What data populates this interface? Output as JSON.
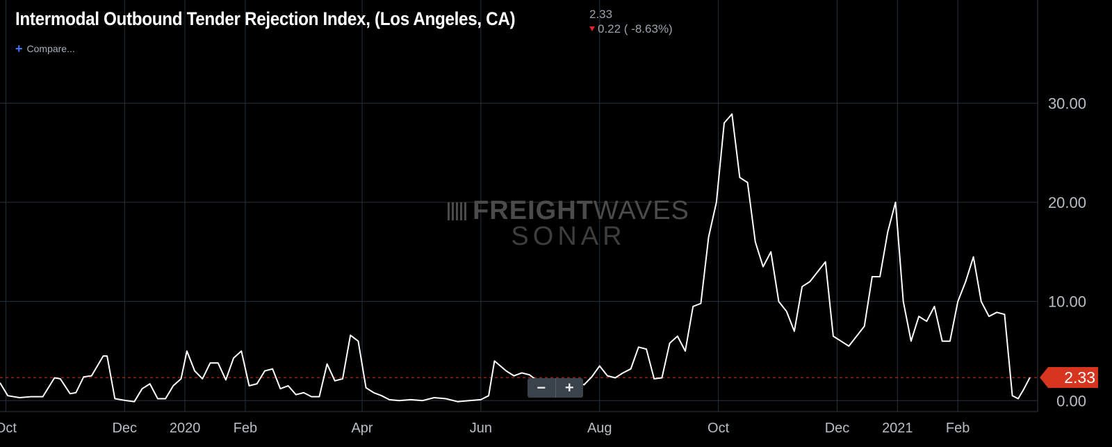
{
  "header": {
    "title": "Intermodal Outbound Tender Rejection Index, (Los Angeles, CA)",
    "last_value": "2.33",
    "change": "0.22 ( -8.63%)"
  },
  "compare_label": "Compare...",
  "zoom": {
    "minus": "−",
    "plus": "+"
  },
  "watermark": {
    "brand_bold": "FREIGHT",
    "brand_light": "WAVES",
    "product": "SONAR"
  },
  "last_value_tag": "2.33",
  "colors": {
    "background": "#000000",
    "line": "#ffffff",
    "grid": "#27323d",
    "last_tag": "#d6361f",
    "down": "#e8202a"
  },
  "chart_data": {
    "type": "line",
    "title": "Intermodal Outbound Tender Rejection Index, (Los Angeles, CA)",
    "x_tick_labels": [
      "Oct",
      "Dec",
      "2020",
      "Feb",
      "Apr",
      "Jun",
      "Aug",
      "Oct",
      "Dec",
      "2021",
      "Feb"
    ],
    "x_tick_dates": [
      "2019-10-01",
      "2019-12-01",
      "2020-01-01",
      "2020-02-01",
      "2020-04-01",
      "2020-06-01",
      "2020-08-01",
      "2020-10-01",
      "2020-12-01",
      "2021-01-01",
      "2021-02-01"
    ],
    "y_tick_labels": [
      "0.00",
      "10.00",
      "20.00",
      "30.00"
    ],
    "y_ticks": [
      0,
      10,
      20,
      30
    ],
    "xlim": [
      "2019-09-28",
      "2021-03-14"
    ],
    "ylim": [
      -1.1,
      40.4
    ],
    "last_value": 2.33,
    "grid": true,
    "series": [
      {
        "x": [
          "2019-09-28",
          "2019-10-02",
          "2019-10-08",
          "2019-10-14",
          "2019-10-20",
          "2019-10-26",
          "2019-10-29",
          "2019-11-03",
          "2019-11-06",
          "2019-11-10",
          "2019-11-14",
          "2019-11-20",
          "2019-11-22",
          "2019-11-26",
          "2019-12-02",
          "2019-12-06",
          "2019-12-10",
          "2019-12-14",
          "2019-12-18",
          "2019-12-22",
          "2019-12-26",
          "2019-12-30",
          "2020-01-02",
          "2020-01-06",
          "2020-01-10",
          "2020-01-14",
          "2020-01-18",
          "2020-01-22",
          "2020-01-26",
          "2020-01-30",
          "2020-02-03",
          "2020-02-07",
          "2020-02-11",
          "2020-02-15",
          "2020-02-19",
          "2020-02-23",
          "2020-02-27",
          "2020-03-02",
          "2020-03-06",
          "2020-03-10",
          "2020-03-14",
          "2020-03-18",
          "2020-03-22",
          "2020-03-26",
          "2020-03-30",
          "2020-04-03",
          "2020-04-07",
          "2020-04-11",
          "2020-04-15",
          "2020-04-20",
          "2020-04-26",
          "2020-05-02",
          "2020-05-08",
          "2020-05-14",
          "2020-05-20",
          "2020-05-26",
          "2020-06-01",
          "2020-06-05",
          "2020-06-08",
          "2020-06-11",
          "2020-06-14",
          "2020-06-18",
          "2020-06-22",
          "2020-06-26",
          "2020-06-30",
          "2020-07-04",
          "2020-07-08",
          "2020-07-12",
          "2020-07-16",
          "2020-07-20",
          "2020-07-24",
          "2020-07-28",
          "2020-08-01",
          "2020-08-05",
          "2020-08-09",
          "2020-08-13",
          "2020-08-17",
          "2020-08-21",
          "2020-08-25",
          "2020-08-29",
          "2020-09-02",
          "2020-09-06",
          "2020-09-10",
          "2020-09-14",
          "2020-09-18",
          "2020-09-22",
          "2020-09-26",
          "2020-09-30",
          "2020-10-04",
          "2020-10-08",
          "2020-10-12",
          "2020-10-16",
          "2020-10-20",
          "2020-10-24",
          "2020-10-28",
          "2020-11-01",
          "2020-11-05",
          "2020-11-09",
          "2020-11-13",
          "2020-11-17",
          "2020-11-21",
          "2020-11-25",
          "2020-11-29",
          "2020-12-03",
          "2020-12-07",
          "2020-12-11",
          "2020-12-15",
          "2020-12-19",
          "2020-12-23",
          "2020-12-27",
          "2020-12-31",
          "2021-01-04",
          "2021-01-08",
          "2021-01-12",
          "2021-01-16",
          "2021-01-20",
          "2021-01-24",
          "2021-01-28",
          "2021-02-01",
          "2021-02-05",
          "2021-02-09",
          "2021-02-13",
          "2021-02-17",
          "2021-02-21",
          "2021-02-25",
          "2021-03-01",
          "2021-03-04",
          "2021-03-07",
          "2021-03-10"
        ],
        "y": [
          1.8,
          0.5,
          0.3,
          0.4,
          0.4,
          2.3,
          2.2,
          0.7,
          0.8,
          2.4,
          2.5,
          4.5,
          4.5,
          0.2,
          0.0,
          -0.1,
          1.2,
          1.7,
          0.2,
          0.2,
          1.5,
          2.2,
          5.0,
          3.0,
          2.2,
          3.8,
          3.8,
          2.1,
          4.3,
          5.0,
          1.5,
          1.7,
          3.0,
          3.2,
          1.2,
          1.5,
          0.6,
          0.8,
          0.4,
          0.4,
          3.7,
          2.0,
          2.2,
          6.6,
          6.0,
          1.3,
          0.8,
          0.5,
          0.1,
          0.0,
          0.1,
          0.0,
          0.3,
          0.2,
          -0.1,
          0.0,
          0.1,
          0.5,
          4.0,
          3.5,
          3.0,
          2.5,
          2.8,
          2.6,
          2.0,
          1.7,
          2.0,
          1.7,
          1.8,
          2.0,
          1.6,
          2.4,
          3.5,
          2.5,
          2.3,
          2.8,
          3.2,
          5.4,
          5.2,
          2.2,
          2.3,
          5.8,
          6.5,
          5.0,
          9.5,
          9.8,
          16.5,
          20.0,
          28.0,
          28.9,
          22.5,
          22.0,
          16.0,
          13.5,
          15.0,
          10.0,
          9.0,
          7.0,
          11.5,
          12.0,
          13.0,
          14.0,
          6.5,
          6.0,
          5.5,
          6.5,
          7.5,
          12.5,
          12.5,
          17.0,
          20.0,
          10.0,
          6.0,
          8.5,
          8.0,
          9.5,
          6.0,
          6.0,
          10.0,
          12.0,
          14.5,
          10.0,
          8.5,
          8.9,
          8.7,
          0.5,
          0.2,
          1.2,
          2.33
        ]
      }
    ]
  }
}
